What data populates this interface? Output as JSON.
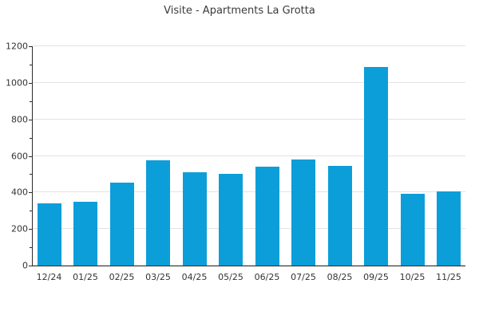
{
  "chart_data": {
    "type": "bar",
    "title": "Visite - Apartments La Grotta",
    "categories": [
      "12/24",
      "01/25",
      "02/25",
      "03/25",
      "04/25",
      "05/25",
      "06/25",
      "07/25",
      "08/25",
      "09/25",
      "10/25",
      "11/25"
    ],
    "values": [
      340,
      350,
      452,
      578,
      510,
      500,
      543,
      579,
      545,
      1085,
      392,
      406
    ],
    "xlabel": "",
    "ylabel": "",
    "ylim": [
      0,
      1200
    ],
    "ytick_step": 200,
    "ytick_labels": [
      "0",
      "200",
      "400",
      "600",
      "800",
      "1000",
      "1200"
    ],
    "minor_tick_step": 100,
    "grid": "horizontal-major",
    "legend": "none",
    "bar_color": "#0c9ed9",
    "gridline_color": "#e3e3e3",
    "axis_color": "#2b2b2b",
    "title_color": "#3b3b3b",
    "tick_label_color": "#333333",
    "background_color": "#ffffff"
  }
}
